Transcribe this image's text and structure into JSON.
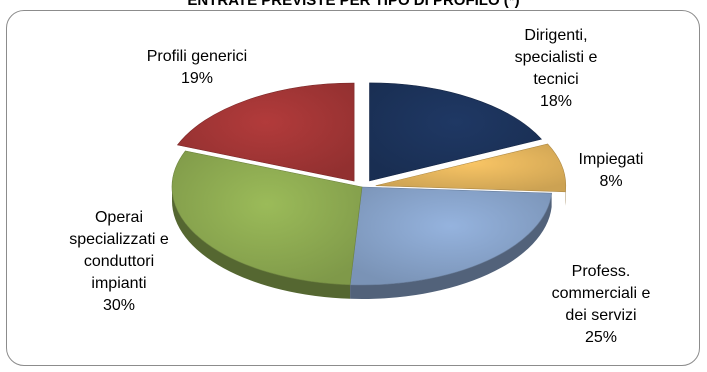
{
  "chart_data": {
    "type": "pie",
    "title": "ENTRATE PREVISTE PER TIPO DI PROFILO (*)",
    "slices": [
      {
        "lines": [
          "Dirigenti,",
          "specialisti e",
          "tecnici"
        ],
        "pct_label": "18%",
        "value": 18,
        "color": "#1f3864"
      },
      {
        "lines": [
          "Impiegati"
        ],
        "pct_label": "8%",
        "value": 8,
        "color": "#f9c565"
      },
      {
        "lines": [
          "Profess.",
          "commerciali e",
          "dei servizi"
        ],
        "pct_label": "25%",
        "value": 25,
        "color": "#95b3de"
      },
      {
        "lines": [
          "Operai",
          "specializzati e",
          "conduttori",
          "impianti"
        ],
        "pct_label": "30%",
        "value": 30,
        "color": "#9bbb59"
      },
      {
        "lines": [
          "Profili generici"
        ],
        "pct_label": "19%",
        "value": 19,
        "color": "#b23b3b"
      }
    ]
  }
}
